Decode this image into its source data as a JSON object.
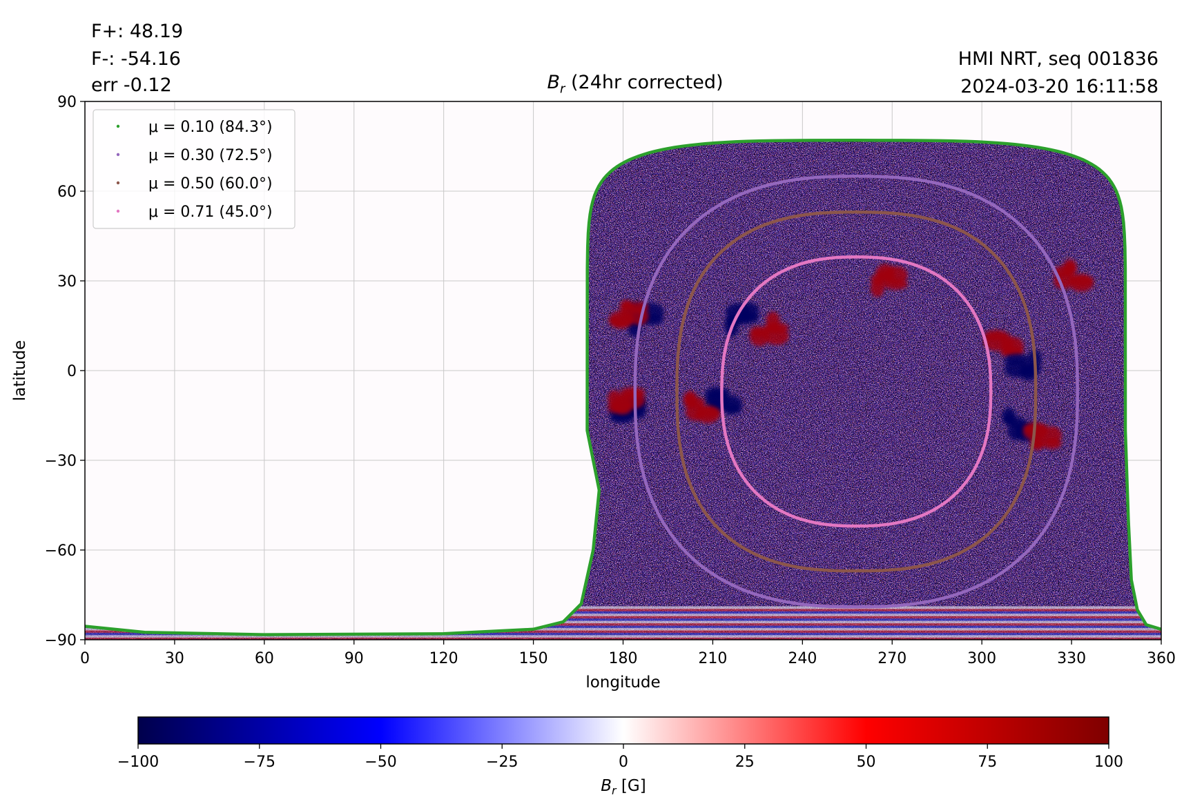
{
  "header": {
    "flux_pos": "F+: 48.19",
    "flux_neg": "F-: -54.16",
    "err": "err -0.12",
    "title_symbol": "B",
    "title_sub": "r",
    "title_rest": " (24hr corrected)",
    "instrument": "HMI NRT, seq 001836",
    "timestamp": "2024-03-20 16:11:58"
  },
  "chart_data": {
    "type": "heatmap",
    "xlabel": "longitude",
    "ylabel": "latitude",
    "xlim": [
      0,
      360
    ],
    "ylim": [
      -90,
      90
    ],
    "x_ticks": [
      0,
      30,
      60,
      90,
      120,
      150,
      180,
      210,
      240,
      270,
      300,
      330,
      360
    ],
    "x_tick_labels": [
      "0",
      "30",
      "60",
      "90",
      "120",
      "150",
      "180",
      "210",
      "240",
      "270",
      "300",
      "330",
      "360"
    ],
    "y_ticks": [
      -90,
      -60,
      -30,
      0,
      30,
      60,
      90
    ],
    "y_tick_labels": [
      "−90",
      "−60",
      "−30",
      "0",
      "30",
      "60",
      "90"
    ],
    "grid": true,
    "legend_placement": "top-left",
    "disk_center": {
      "lon": 258,
      "lat": -7
    },
    "mu_contours": [
      {
        "label": "μ = 0.10 (84.3°)",
        "mu": 0.1,
        "angle_deg": 84.3,
        "color": "#2ca02c",
        "lon_half_width": 90,
        "lat_top": 77,
        "lat_bottom": -89.5
      },
      {
        "label": "μ = 0.30 (72.5°)",
        "mu": 0.3,
        "angle_deg": 72.5,
        "color": "#9467bd",
        "lon_half_width": 74,
        "lat_top": 65,
        "lat_bottom": -79
      },
      {
        "label": "μ = 0.50 (60.0°)",
        "mu": 0.5,
        "angle_deg": 60.0,
        "color": "#8c564b",
        "lon_half_width": 60,
        "lat_top": 53,
        "lat_bottom": -67
      },
      {
        "label": "μ = 0.71 (45.0°)",
        "mu": 0.71,
        "angle_deg": 45.0,
        "color": "#e377c2",
        "lon_half_width": 45,
        "lat_top": 38,
        "lat_bottom": -52
      }
    ],
    "active_regions": [
      {
        "lon": 219,
        "lat": 17,
        "polarity": "negative"
      },
      {
        "lon": 229,
        "lat": 14,
        "polarity": "positive"
      },
      {
        "lon": 186,
        "lat": 17,
        "polarity": "negative"
      },
      {
        "lon": 182,
        "lat": 19,
        "polarity": "positive"
      },
      {
        "lon": 213,
        "lat": -10,
        "polarity": "negative"
      },
      {
        "lon": 205,
        "lat": -12,
        "polarity": "positive"
      },
      {
        "lon": 183,
        "lat": -13,
        "polarity": "negative"
      },
      {
        "lon": 180,
        "lat": -10,
        "polarity": "positive"
      },
      {
        "lon": 312,
        "lat": -18,
        "polarity": "negative"
      },
      {
        "lon": 320,
        "lat": -22,
        "polarity": "positive"
      },
      {
        "lon": 308,
        "lat": 9,
        "polarity": "positive"
      },
      {
        "lon": 315,
        "lat": 2,
        "polarity": "negative"
      },
      {
        "lon": 268,
        "lat": 30,
        "polarity": "positive"
      },
      {
        "lon": 330,
        "lat": 32,
        "polarity": "positive"
      }
    ],
    "colorbar": {
      "label_symbol": "B",
      "label_sub": "r",
      "label_unit": " [G]",
      "min": -100,
      "max": 100,
      "ticks": [
        -100,
        -75,
        -50,
        -25,
        0,
        25,
        50,
        75,
        100
      ],
      "tick_labels": [
        "−100",
        "−75",
        "−50",
        "−25",
        "0",
        "25",
        "50",
        "75",
        "100"
      ],
      "colormap": "seismic",
      "stops": [
        "#00004c",
        "#0000ff",
        "#ffffff",
        "#ff0000",
        "#7f0000"
      ]
    }
  }
}
